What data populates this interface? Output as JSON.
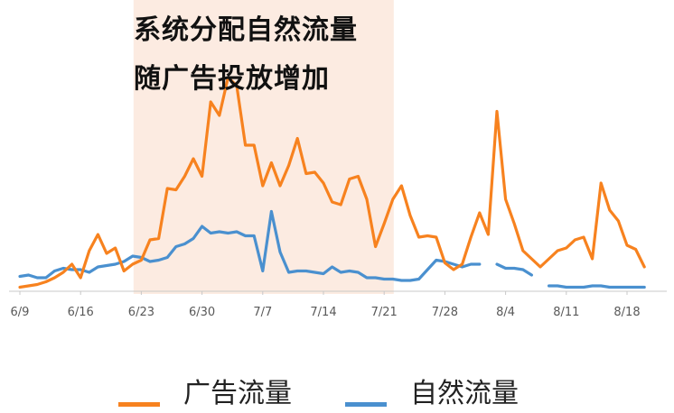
{
  "chart_data": {
    "type": "line",
    "title": "",
    "xlabel": "",
    "ylabel": "",
    "x_tick_labels": [
      "6/9",
      "6/16",
      "6/23",
      "6/30",
      "7/7",
      "7/14",
      "7/21",
      "7/28",
      "8/4",
      "8/11",
      "8/18"
    ],
    "annotation": [
      "系统分配自然流量",
      "随广告投放增加"
    ],
    "highlight_range": [
      "6/22",
      "7/22"
    ],
    "highlight_color": "#fcebe1",
    "grid": false,
    "y_axis_visible": false,
    "legend_position": "bottom",
    "legend": [
      {
        "name": "广告流量",
        "color": "#f7821f"
      },
      {
        "name": "自然流量",
        "color": "#4a90cf"
      }
    ],
    "series": [
      {
        "name": "广告流量",
        "color": "#f7821f",
        "values": [
          3,
          4,
          5,
          7,
          10,
          14,
          20,
          10,
          30,
          42,
          28,
          32,
          15,
          20,
          23,
          38,
          39,
          76,
          75,
          85,
          98,
          85,
          140,
          130,
          158,
          152,
          108,
          108,
          78,
          95,
          78,
          93,
          113,
          87,
          88,
          80,
          66,
          64,
          83,
          85,
          68,
          33,
          50,
          68,
          78,
          56,
          40,
          41,
          40,
          21,
          16,
          20,
          40,
          58,
          42,
          133,
          68,
          50,
          30,
          24,
          18,
          24,
          30,
          32,
          38,
          40,
          24,
          80,
          60,
          52,
          34,
          31,
          18
        ]
      },
      {
        "name": "自然流量",
        "color": "#4a90cf",
        "values": [
          11,
          12,
          10,
          10,
          15,
          17,
          16,
          16,
          14,
          18,
          19,
          20,
          22,
          26,
          25,
          22,
          23,
          25,
          33,
          35,
          39,
          48,
          43,
          44,
          43,
          44,
          41,
          41,
          15,
          59,
          29,
          14,
          15,
          15,
          14,
          13,
          18,
          14,
          15,
          14,
          10,
          10,
          9,
          9,
          8,
          8,
          9,
          16,
          23,
          22,
          20,
          18,
          20,
          20,
          null,
          20,
          17,
          17,
          16,
          12,
          null,
          4,
          4,
          3,
          3,
          3,
          4,
          4,
          3,
          3,
          3,
          3,
          3
        ]
      }
    ]
  }
}
